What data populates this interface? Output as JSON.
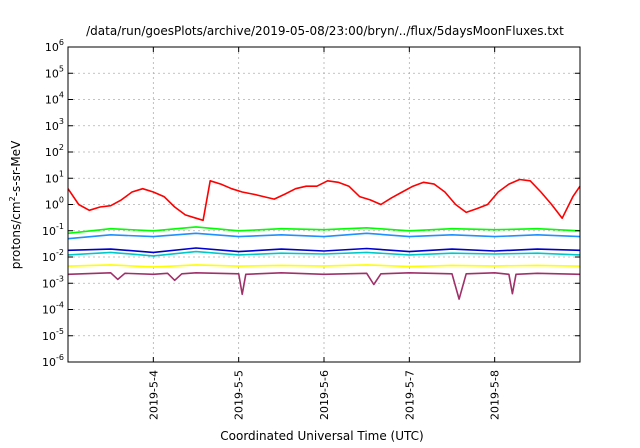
{
  "chart_data": {
    "type": "line",
    "title": "/data/run/goesPlots/archive/2019-05-08/23:00/bryn/../flux/5daysMoonFluxes.txt",
    "xlabel": "Coordinated Universal Time (UTC)",
    "ylabel": "protons/cm²-s-sr-MeV",
    "ylabel_base": "protons/cm",
    "ylabel_sup": "2",
    "ylabel_rest": "-s-sr-MeV",
    "y_scale": "log",
    "ylim": [
      1e-06,
      1000000.0
    ],
    "y_ticks": [
      {
        "value": 1e-06,
        "exp": "-6"
      },
      {
        "value": 1e-05,
        "exp": "-5"
      },
      {
        "value": 0.0001,
        "exp": "-4"
      },
      {
        "value": 0.001,
        "exp": "-3"
      },
      {
        "value": 0.01,
        "exp": "-2"
      },
      {
        "value": 0.1,
        "exp": "-1"
      },
      {
        "value": 1,
        "exp": "0"
      },
      {
        "value": 10,
        "exp": "1"
      },
      {
        "value": 100,
        "exp": "2"
      },
      {
        "value": 1000,
        "exp": "3"
      },
      {
        "value": 10000,
        "exp": "4"
      },
      {
        "value": 100000,
        "exp": "5"
      },
      {
        "value": 1000000,
        "exp": "6"
      }
    ],
    "xlim": [
      "2019-05-03T00:00",
      "2019-05-09T00:00"
    ],
    "x_ticks": [
      {
        "value": "2019-05-04T00:00",
        "label": "2019-5-4"
      },
      {
        "value": "2019-05-05T00:00",
        "label": "2019-5-5"
      },
      {
        "value": "2019-05-06T00:00",
        "label": "2019-5-6"
      },
      {
        "value": "2019-05-07T00:00",
        "label": "2019-5-7"
      },
      {
        "value": "2019-05-08T00:00",
        "label": "2019-5-8"
      }
    ],
    "grid": true,
    "legend": "none",
    "series": [
      {
        "color": "#ff0000",
        "x": [
          "2019-05-03T00:00",
          "2019-05-03T03:00",
          "2019-05-03T06:00",
          "2019-05-03T09:00",
          "2019-05-03T12:00",
          "2019-05-03T15:00",
          "2019-05-03T18:00",
          "2019-05-03T21:00",
          "2019-05-04T00:00",
          "2019-05-04T03:00",
          "2019-05-04T06:00",
          "2019-05-04T09:00",
          "2019-05-04T12:00",
          "2019-05-04T14:00",
          "2019-05-04T16:00",
          "2019-05-04T19:00",
          "2019-05-04T22:00",
          "2019-05-05T01:00",
          "2019-05-05T04:00",
          "2019-05-05T07:00",
          "2019-05-05T10:00",
          "2019-05-05T13:00",
          "2019-05-05T16:00",
          "2019-05-05T19:00",
          "2019-05-05T22:00",
          "2019-05-06T01:00",
          "2019-05-06T04:00",
          "2019-05-06T07:00",
          "2019-05-06T10:00",
          "2019-05-06T13:00",
          "2019-05-06T16:00",
          "2019-05-06T19:00",
          "2019-05-06T22:00",
          "2019-05-07T01:00",
          "2019-05-07T04:00",
          "2019-05-07T07:00",
          "2019-05-07T10:00",
          "2019-05-07T13:00",
          "2019-05-07T16:00",
          "2019-05-07T19:00",
          "2019-05-07T22:00",
          "2019-05-08T01:00",
          "2019-05-08T04:00",
          "2019-05-08T07:00",
          "2019-05-08T10:00",
          "2019-05-08T13:00",
          "2019-05-08T16:00",
          "2019-05-08T19:00",
          "2019-05-08T22:00",
          "2019-05-09T00:00"
        ],
        "values": [
          4,
          1,
          0.6,
          0.8,
          0.9,
          1.5,
          3,
          4,
          3,
          2,
          0.8,
          0.4,
          0.3,
          0.25,
          8,
          6,
          4,
          3,
          2.5,
          2,
          1.6,
          2.5,
          4,
          5,
          5,
          8,
          7,
          5,
          2,
          1.5,
          1,
          1.8,
          3,
          5,
          7,
          6,
          3,
          1,
          0.5,
          0.7,
          1,
          3,
          6,
          9,
          8,
          3,
          1,
          0.3,
          2,
          5
        ]
      },
      {
        "color": "#00ff00",
        "x": [
          "2019-05-03T00:00",
          "2019-05-03T12:00",
          "2019-05-04T00:00",
          "2019-05-04T12:00",
          "2019-05-05T00:00",
          "2019-05-05T12:00",
          "2019-05-06T00:00",
          "2019-05-06T12:00",
          "2019-05-07T00:00",
          "2019-05-07T12:00",
          "2019-05-08T00:00",
          "2019-05-08T12:00",
          "2019-05-09T00:00"
        ],
        "values": [
          0.08,
          0.12,
          0.1,
          0.14,
          0.1,
          0.12,
          0.11,
          0.13,
          0.1,
          0.12,
          0.11,
          0.12,
          0.1
        ]
      },
      {
        "color": "#1e90ff",
        "x": [
          "2019-05-03T00:00",
          "2019-05-03T12:00",
          "2019-05-04T00:00",
          "2019-05-04T12:00",
          "2019-05-05T00:00",
          "2019-05-05T12:00",
          "2019-05-06T00:00",
          "2019-05-06T12:00",
          "2019-05-07T00:00",
          "2019-05-07T12:00",
          "2019-05-08T00:00",
          "2019-05-08T12:00",
          "2019-05-09T00:00"
        ],
        "values": [
          0.05,
          0.07,
          0.06,
          0.08,
          0.06,
          0.07,
          0.06,
          0.08,
          0.06,
          0.07,
          0.06,
          0.07,
          0.06
        ]
      },
      {
        "color": "#00c8c8",
        "x": [
          "2019-05-03T00:00",
          "2019-05-03T12:00",
          "2019-05-04T00:00",
          "2019-05-04T12:00",
          "2019-05-05T00:00",
          "2019-05-05T12:00",
          "2019-05-06T00:00",
          "2019-05-06T12:00",
          "2019-05-07T00:00",
          "2019-05-07T12:00",
          "2019-05-08T00:00",
          "2019-05-08T12:00",
          "2019-05-09T00:00"
        ],
        "values": [
          0.012,
          0.015,
          0.011,
          0.016,
          0.012,
          0.014,
          0.013,
          0.015,
          0.012,
          0.014,
          0.013,
          0.014,
          0.012
        ]
      },
      {
        "color": "#0000cd",
        "x": [
          "2019-05-03T00:00",
          "2019-05-03T12:00",
          "2019-05-04T00:00",
          "2019-05-04T12:00",
          "2019-05-05T00:00",
          "2019-05-05T12:00",
          "2019-05-06T00:00",
          "2019-05-06T12:00",
          "2019-05-07T00:00",
          "2019-05-07T12:00",
          "2019-05-08T00:00",
          "2019-05-08T12:00",
          "2019-05-09T00:00"
        ],
        "values": [
          0.018,
          0.02,
          0.015,
          0.022,
          0.016,
          0.02,
          0.017,
          0.021,
          0.016,
          0.02,
          0.017,
          0.02,
          0.018
        ]
      },
      {
        "color": "#ffff00",
        "x": [
          "2019-05-03T00:00",
          "2019-05-03T12:00",
          "2019-05-04T00:00",
          "2019-05-04T12:00",
          "2019-05-05T00:00",
          "2019-05-05T12:00",
          "2019-05-06T00:00",
          "2019-05-06T12:00",
          "2019-05-07T00:00",
          "2019-05-07T12:00",
          "2019-05-08T00:00",
          "2019-05-08T12:00",
          "2019-05-09T00:00"
        ],
        "values": [
          0.0045,
          0.005,
          0.0042,
          0.005,
          0.0045,
          0.0048,
          0.0046,
          0.005,
          0.0044,
          0.0048,
          0.0046,
          0.0048,
          0.0045
        ]
      },
      {
        "color": "#a0306a",
        "x": [
          "2019-05-03T00:00",
          "2019-05-03T12:00",
          "2019-05-03T14:00",
          "2019-05-03T16:00",
          "2019-05-04T00:00",
          "2019-05-04T04:00",
          "2019-05-04T06:00",
          "2019-05-04T08:00",
          "2019-05-04T12:00",
          "2019-05-05T00:00",
          "2019-05-05T01:00",
          "2019-05-05T02:00",
          "2019-05-05T12:00",
          "2019-05-06T00:00",
          "2019-05-06T12:00",
          "2019-05-06T14:00",
          "2019-05-06T16:00",
          "2019-05-07T00:00",
          "2019-05-07T12:00",
          "2019-05-07T14:00",
          "2019-05-07T16:00",
          "2019-05-08T00:00",
          "2019-05-08T04:00",
          "2019-05-08T05:00",
          "2019-05-08T06:00",
          "2019-05-08T12:00",
          "2019-05-09T00:00"
        ],
        "values": [
          0.0022,
          0.0025,
          0.0014,
          0.0024,
          0.0022,
          0.0024,
          0.0013,
          0.0023,
          0.0025,
          0.0023,
          0.00038,
          0.0022,
          0.0025,
          0.0022,
          0.0024,
          0.0009,
          0.0023,
          0.0025,
          0.0023,
          0.00025,
          0.0023,
          0.0025,
          0.0022,
          0.0004,
          0.0022,
          0.0024,
          0.0022
        ]
      }
    ]
  }
}
